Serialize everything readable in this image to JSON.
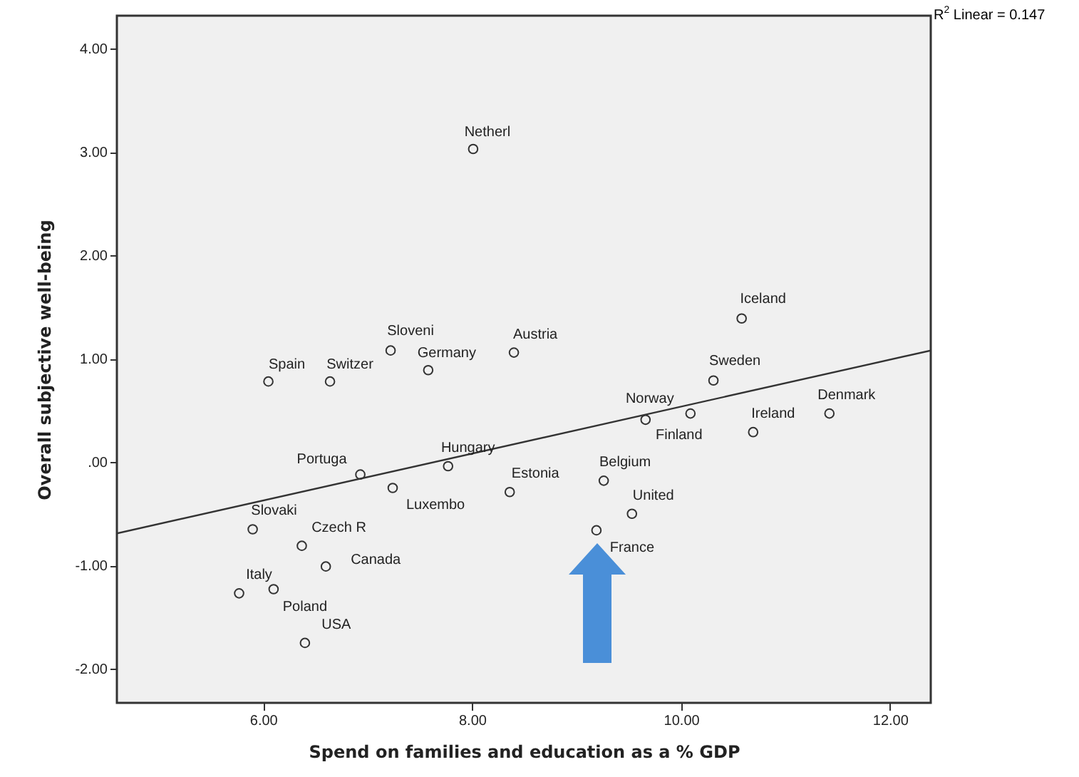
{
  "chart_data": {
    "type": "scatter",
    "xlabel": "Spend on families and education as a % GDP",
    "ylabel": "Overall subjective well-being",
    "xlim": [
      4.6,
      12.39
    ],
    "ylim": [
      -2.33,
      4.32
    ],
    "xticks": [
      {
        "value": 6,
        "label": "6.00"
      },
      {
        "value": 8,
        "label": "8.00"
      },
      {
        "value": 10,
        "label": "10.00"
      },
      {
        "value": 12,
        "label": "12.00"
      }
    ],
    "yticks": [
      {
        "value": -2,
        "label": "-2.00"
      },
      {
        "value": -1,
        "label": "-1.00"
      },
      {
        "value": 0,
        "label": ".00"
      },
      {
        "value": 1,
        "label": "1.00"
      },
      {
        "value": 2,
        "label": "2.00"
      },
      {
        "value": 3,
        "label": "3.00"
      },
      {
        "value": 4,
        "label": "4.00"
      }
    ],
    "grid": false,
    "series": [
      {
        "marker": "circle",
        "color": "#333333",
        "x": [
          8.01,
          7.22,
          7.58,
          6.05,
          6.64,
          8.4,
          10.58,
          10.31,
          9.66,
          10.09,
          10.69,
          11.42,
          9.26,
          9.53,
          9.19,
          6.93,
          7.77,
          7.24,
          8.36,
          5.9,
          6.37,
          6.6,
          5.77,
          6.1,
          6.4
        ],
        "values": [
          3.03,
          1.08,
          0.89,
          0.78,
          0.78,
          1.06,
          1.39,
          0.79,
          0.41,
          0.47,
          0.29,
          0.47,
          -0.18,
          -0.5,
          -0.66,
          -0.12,
          -0.04,
          -0.25,
          -0.29,
          -0.65,
          -0.81,
          -1.01,
          -1.27,
          -1.23,
          -1.75
        ]
      },
      {
        "type": "line",
        "color": "#333333",
        "x": [
          4.6,
          12.39
        ],
        "values": [
          -0.69,
          1.08
        ]
      }
    ],
    "annotations": [
      {
        "text": "Netherl",
        "x": 8.01,
        "y": 3.03
      },
      {
        "text": "Sloveni",
        "x": 7.22,
        "y": 1.08
      },
      {
        "text": "Germany",
        "x": 7.58,
        "y": 0.89
      },
      {
        "text": "Spain",
        "x": 6.05,
        "y": 0.78
      },
      {
        "text": "Switzer",
        "x": 6.64,
        "y": 0.78
      },
      {
        "text": "Austria",
        "x": 8.4,
        "y": 1.06
      },
      {
        "text": "Iceland",
        "x": 10.58,
        "y": 1.39
      },
      {
        "text": "Sweden",
        "x": 10.31,
        "y": 0.79
      },
      {
        "text": "Norway",
        "x": 9.66,
        "y": 0.41
      },
      {
        "text": "Finland",
        "x": 10.09,
        "y": 0.47
      },
      {
        "text": "Ireland",
        "x": 10.69,
        "y": 0.29
      },
      {
        "text": "Denmark",
        "x": 11.42,
        "y": 0.47
      },
      {
        "text": "Belgium",
        "x": 9.26,
        "y": -0.18
      },
      {
        "text": "United",
        "x": 9.53,
        "y": -0.5
      },
      {
        "text": "France",
        "x": 9.19,
        "y": -0.66
      },
      {
        "text": "Portuga",
        "x": 6.93,
        "y": -0.12
      },
      {
        "text": "Hungary",
        "x": 7.77,
        "y": -0.04
      },
      {
        "text": "Luxembo",
        "x": 7.24,
        "y": -0.25
      },
      {
        "text": "Estonia",
        "x": 8.36,
        "y": -0.29
      },
      {
        "text": "Slovaki",
        "x": 5.9,
        "y": -0.65
      },
      {
        "text": "Czech R",
        "x": 6.37,
        "y": -0.81
      },
      {
        "text": "Canada",
        "x": 6.6,
        "y": -1.01
      },
      {
        "text": "Italy",
        "x": 5.77,
        "y": -1.27
      },
      {
        "text": "Poland",
        "x": 6.1,
        "y": -1.23
      },
      {
        "text": "USA",
        "x": 6.4,
        "y": -1.75
      },
      "R$^{2}$ Linear = 0.147"
    ]
  }
}
